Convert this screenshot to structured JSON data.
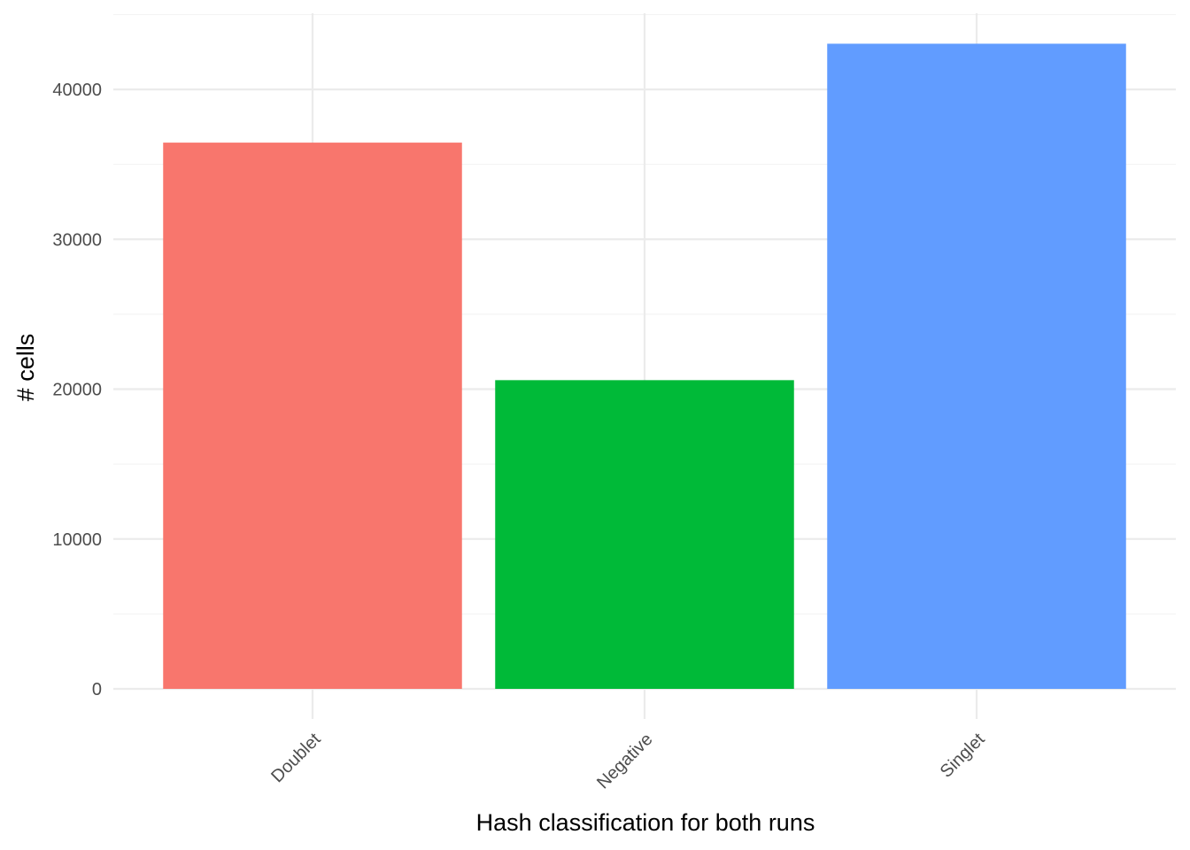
{
  "chart_data": {
    "type": "bar",
    "categories": [
      "Doublet",
      "Negative",
      "Singlet"
    ],
    "values": [
      36450,
      20600,
      43050
    ],
    "colors": [
      "#F8766D",
      "#00BA38",
      "#619CFF"
    ],
    "xlabel": "Hash classification for both runs",
    "ylabel": "# cells",
    "ylim": [
      0,
      45000
    ],
    "yticks": [
      0,
      10000,
      20000,
      30000,
      40000
    ],
    "ytick_labels": [
      "0",
      "10000",
      "20000",
      "30000",
      "40000"
    ],
    "grid": true,
    "legend": "none",
    "x_tick_rotation": "45"
  }
}
